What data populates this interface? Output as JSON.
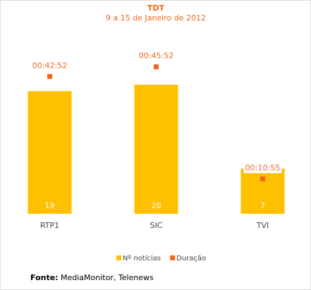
{
  "chart_data": {
    "type": "bar",
    "title": "TDT",
    "subtitle": "9 a 15 de Janeiro de 2012",
    "categories": [
      "RTP1",
      "SIC",
      "TVI"
    ],
    "series": [
      {
        "name": "Nº notícias",
        "type": "bar",
        "color": "#ffc000",
        "values": [
          19,
          20,
          7
        ]
      },
      {
        "name": "Duração",
        "type": "scatter",
        "axis": "y2",
        "color": "#f0661a",
        "values": [
          2572,
          2752,
          655
        ],
        "value_labels": [
          "00:42:52",
          "00:45:52",
          "00:10:55"
        ]
      }
    ],
    "legend": "bottom",
    "source": {
      "label": "Fonte:",
      "text": "MediaMonitor, Telenews"
    }
  }
}
